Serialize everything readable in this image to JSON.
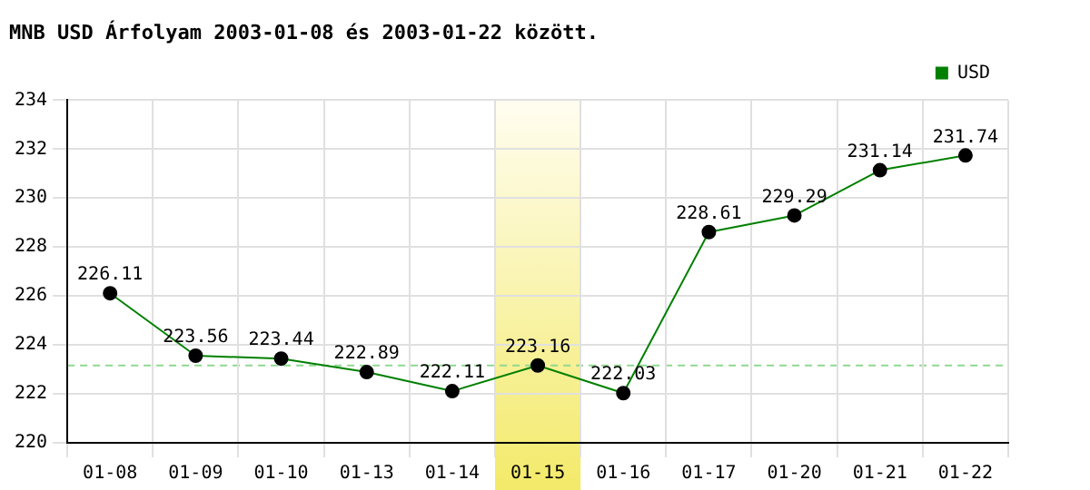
{
  "chart_data": {
    "type": "line",
    "title": "MNB USD Árfolyam 2003-01-08 és 2003-01-22 között.",
    "categories": [
      "01-08",
      "01-09",
      "01-10",
      "01-13",
      "01-14",
      "01-15",
      "01-16",
      "01-17",
      "01-20",
      "01-21",
      "01-22"
    ],
    "series": [
      {
        "name": "USD",
        "color": "#008000",
        "values": [
          226.11,
          223.56,
          223.44,
          222.89,
          222.11,
          223.16,
          222.03,
          228.61,
          229.29,
          231.14,
          231.74
        ]
      }
    ],
    "ylim": [
      220,
      234
    ],
    "yticks": [
      220,
      222,
      224,
      226,
      228,
      230,
      232,
      234
    ],
    "grid": true,
    "legend": "top right",
    "marker": "circle",
    "data_labels": true,
    "ref_lines": [
      {
        "axis": "y",
        "value": 223.16,
        "color": "#90d890",
        "line_style": "dashed"
      }
    ],
    "bands": [
      {
        "axis": "x",
        "from": "01-15",
        "to": "01-15",
        "color": "#f3ea6a"
      }
    ]
  }
}
